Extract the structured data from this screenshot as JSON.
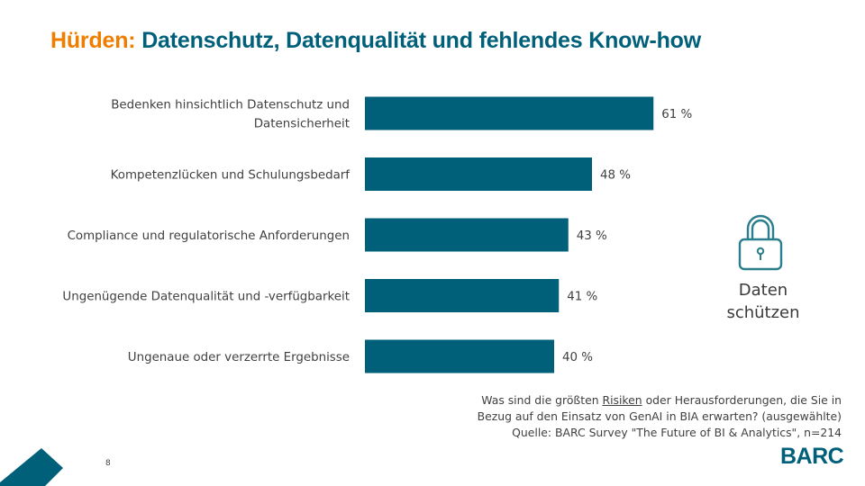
{
  "title": {
    "accent": "Hürden:",
    "main": "Datenschutz, Datenqualität und fehlendes Know-how"
  },
  "chart_data": {
    "type": "bar",
    "orientation": "horizontal",
    "categories": [
      [
        "Bedenken hinsichtlich Datenschutz und",
        "Datensicherheit"
      ],
      [
        "Kompetenzlücken und Schulungsbedarf"
      ],
      [
        "Compliance und regulatorische Anforderungen"
      ],
      [
        "Ungenügende Datenqualität und -verfügbarkeit"
      ],
      [
        "Ungenaue oder verzerrte Ergebnisse"
      ]
    ],
    "values": [
      61,
      48,
      43,
      41,
      40
    ],
    "value_labels": [
      "61 %",
      "48 %",
      "43 %",
      "41 %",
      "40 %"
    ],
    "unit": "%",
    "xlim": [
      0,
      100
    ],
    "bar_color": "#005f79",
    "grid": false,
    "xlabel": "",
    "ylabel": ""
  },
  "badge": {
    "icon": "lock-icon",
    "line1": "Daten",
    "line2": "schützen"
  },
  "question": {
    "part1": "Was sind die größten ",
    "risk_word": "Risiken",
    "part2": " oder Herausforderungen, die Sie in",
    "line2": "Bezug auf den Einsatz von GenAI in BIA erwarten? (ausgewählte)",
    "source": "Quelle: BARC Survey \"The Future of BI & Analytics\", n=214"
  },
  "footer": {
    "page_number": "8",
    "logo": "BARC"
  },
  "colors": {
    "accent": "#ef7d00",
    "brand": "#005f79",
    "icon": "#2b7e8c"
  }
}
